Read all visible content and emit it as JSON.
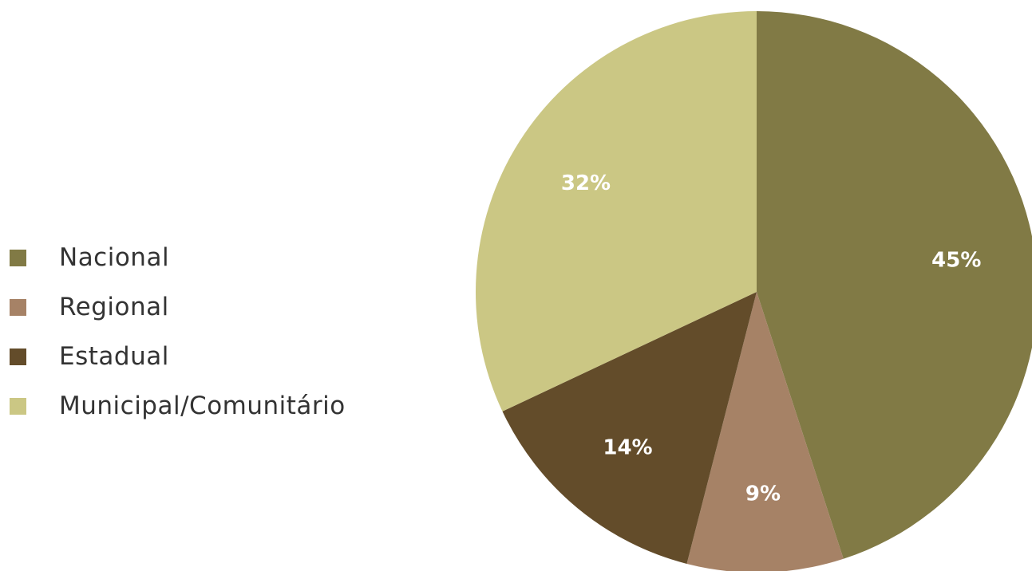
{
  "chart_data": {
    "type": "pie",
    "categories": [
      "Nacional",
      "Regional",
      "Estadual",
      "Municipal/Comunitário"
    ],
    "values": [
      45,
      9,
      14,
      32
    ],
    "data_labels": [
      "45%",
      "9%",
      "14%",
      "32%"
    ],
    "colors": [
      "#817a45",
      "#a68266",
      "#634c2a",
      "#cbc784"
    ],
    "title": "",
    "legend": "left"
  }
}
